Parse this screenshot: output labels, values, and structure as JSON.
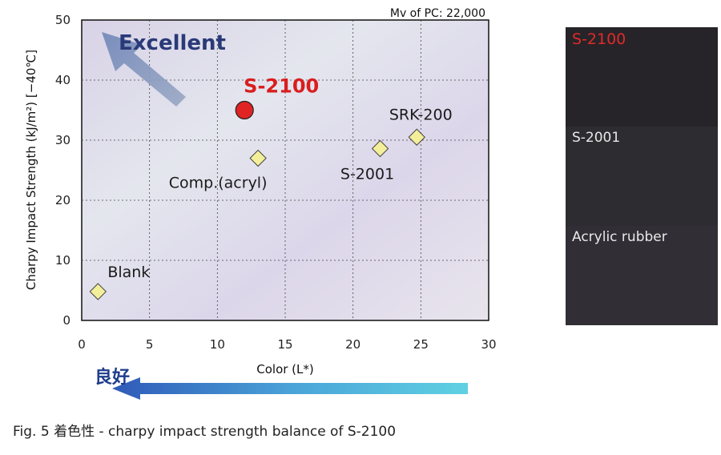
{
  "chart_data": {
    "type": "scatter",
    "title": "",
    "xlabel": "Color (L*)",
    "ylabel": "Charpy Impact Strength (kJ/m²) [−40℃]",
    "xlim": [
      0,
      30
    ],
    "ylim": [
      0,
      50
    ],
    "xticks": [
      0,
      5,
      10,
      15,
      20,
      25,
      30
    ],
    "yticks": [
      0,
      10,
      20,
      30,
      40,
      50
    ],
    "grid": true,
    "annotation": "Mv of PC: 22,000",
    "direction_label": "Excellent",
    "direction_label_jp": "良好",
    "points": [
      {
        "label": "Blank",
        "x": 1.2,
        "y": 4.8,
        "marker": "diamond",
        "color": "#f3ee9a"
      },
      {
        "label": "Comp.(acryl)",
        "x": 13.0,
        "y": 27.0,
        "marker": "diamond",
        "color": "#f3ee9a"
      },
      {
        "label": "S-2001",
        "x": 22.0,
        "y": 28.6,
        "marker": "diamond",
        "color": "#f3ee9a"
      },
      {
        "label": "SRK-200",
        "x": 24.7,
        "y": 30.5,
        "marker": "diamond",
        "color": "#f3ee9a"
      },
      {
        "label": "S-2100",
        "x": 12.0,
        "y": 35.0,
        "marker": "circle",
        "color": "#e02424"
      }
    ]
  },
  "samples": [
    {
      "label": "S-2100",
      "highlight": true
    },
    {
      "label": "S-2001",
      "highlight": false
    },
    {
      "label": "Acrylic rubber",
      "highlight": false
    }
  ],
  "caption": "Fig. 5  着色性 - charpy impact strength balance of S-2100"
}
